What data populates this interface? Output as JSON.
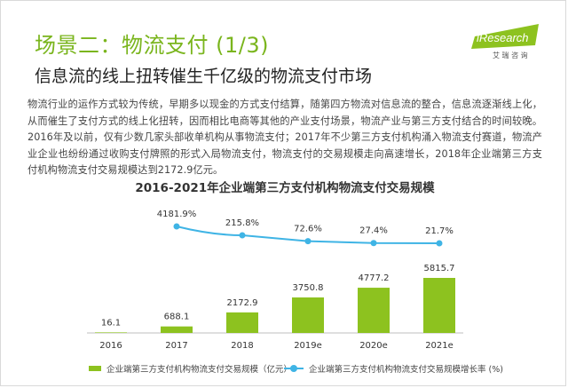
{
  "header": {
    "title": "场景二：物流支付 (1/3)",
    "subtitle": "信息流的线上扭转催生千亿级的物流支付市场"
  },
  "logo": {
    "brand": "iResearch",
    "tagline": "艾 瑞 咨 询",
    "color": "#8dc21f"
  },
  "body": {
    "paragraph": "物流行业的运作方式较为传统，早期多以现金的方式支付结算，随第四方物流对信息流的整合，信息流逐渐线上化，从而催生了支付方式的线上化扭转，因而相比电商等其他的产业支付场景，物流产业与第三方支付结合的时间较晚。2016年及以前，仅有少数几家头部收单机构从事物流支付；2017年不少第三方支付机构涌入物流支付赛道，物流产业企业也纷纷通过收购支付牌照的形式入局物流支付，物流支付的交易规模走向高速增长，2018年企业端第三方支付机构物流支付交易规模达到2172.9亿元。"
  },
  "chart_data": {
    "type": "bar",
    "title": "2016-2021年企业端第三方支付机构物流支付交易规模",
    "categories": [
      "2016",
      "2017",
      "2018",
      "2019e",
      "2020e",
      "2021e"
    ],
    "series": [
      {
        "name": "企业端第三方支付机构物流支付交易规模（亿元）",
        "type": "bar",
        "color": "#8dc21f",
        "values": [
          16.1,
          688.1,
          2172.9,
          3750.8,
          4777.2,
          5815.7
        ],
        "labels": [
          "16.1",
          "688.1",
          "2172.9",
          "3750.8",
          "4777.2",
          "5815.7"
        ]
      },
      {
        "name": "企业端第三方支付机构物流支付交易规模增长率 (%)",
        "type": "line",
        "color": "#3fb4e5",
        "x": [
          "2017",
          "2018",
          "2019e",
          "2020e",
          "2021e"
        ],
        "values": [
          4181.9,
          215.8,
          72.6,
          27.4,
          21.7
        ],
        "labels": [
          "4181.9%",
          "215.8%",
          "72.6%",
          "27.4%",
          "21.7%"
        ]
      }
    ],
    "legend_position": "bottom"
  }
}
